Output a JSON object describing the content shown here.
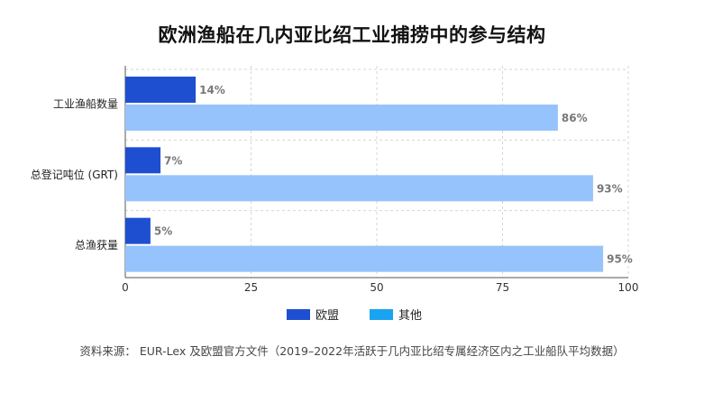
{
  "chart_data": {
    "type": "bar",
    "orientation": "horizontal",
    "title": "欧洲渔船在几内亚比绍工业捕捞中的参与结构",
    "categories": [
      "工业渔船数量",
      "总登记吨位 (GRT)",
      "总渔获量"
    ],
    "series": [
      {
        "name": "欧盟",
        "values": [
          14,
          7,
          5
        ],
        "color": "#1f4fd1",
        "label_color": "#777777"
      },
      {
        "name": "其他",
        "values": [
          86,
          93,
          95
        ],
        "color": "#96c3fb",
        "label_color": "#777777"
      }
    ],
    "value_suffix": "%",
    "xlim": [
      0,
      100
    ],
    "xticks": [
      0,
      25,
      50,
      75,
      100
    ],
    "legend_colors": [
      "#1f4fd1",
      "#1aa3f0"
    ],
    "grid": true,
    "legend_position": "bottom"
  },
  "source": "资料来源： EUR-Lex 及欧盟官方文件（2019–2022年活跃于几内亚比绍专属经济区内之工业船队平均数据）"
}
